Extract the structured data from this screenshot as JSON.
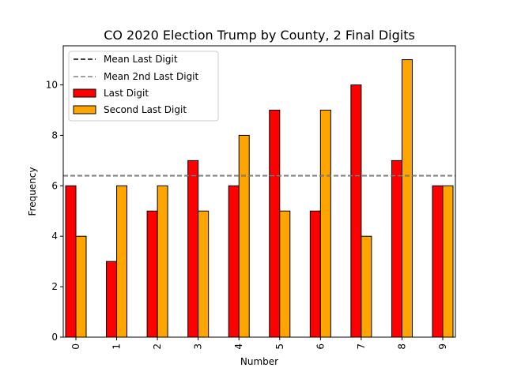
{
  "chart_data": {
    "type": "bar",
    "title": "CO 2020 Election Trump by County, 2 Final Digits",
    "xlabel": "Number",
    "ylabel": "Frequency",
    "categories": [
      "0",
      "1",
      "2",
      "3",
      "4",
      "5",
      "6",
      "7",
      "8",
      "9"
    ],
    "series": [
      {
        "name": "Last Digit",
        "color": "#ff0000",
        "values": [
          6,
          3,
          5,
          7,
          6,
          9,
          5,
          10,
          7,
          6
        ]
      },
      {
        "name": "Second Last Digit",
        "color": "#ffa500",
        "values": [
          4,
          6,
          6,
          5,
          8,
          5,
          9,
          4,
          11,
          6
        ]
      }
    ],
    "reference_lines": [
      {
        "name": "Mean Last Digit",
        "color": "#000000",
        "style": "dashed",
        "y": 6.4
      },
      {
        "name": "Mean 2nd Last Digit",
        "color": "#808080",
        "style": "dashed",
        "y": 6.4
      }
    ],
    "ylim": [
      0,
      11.55
    ],
    "yticks": [
      0,
      2,
      4,
      6,
      8,
      10
    ],
    "x_tick_rotation": "vertical",
    "grid": false,
    "legend": "top-left"
  }
}
